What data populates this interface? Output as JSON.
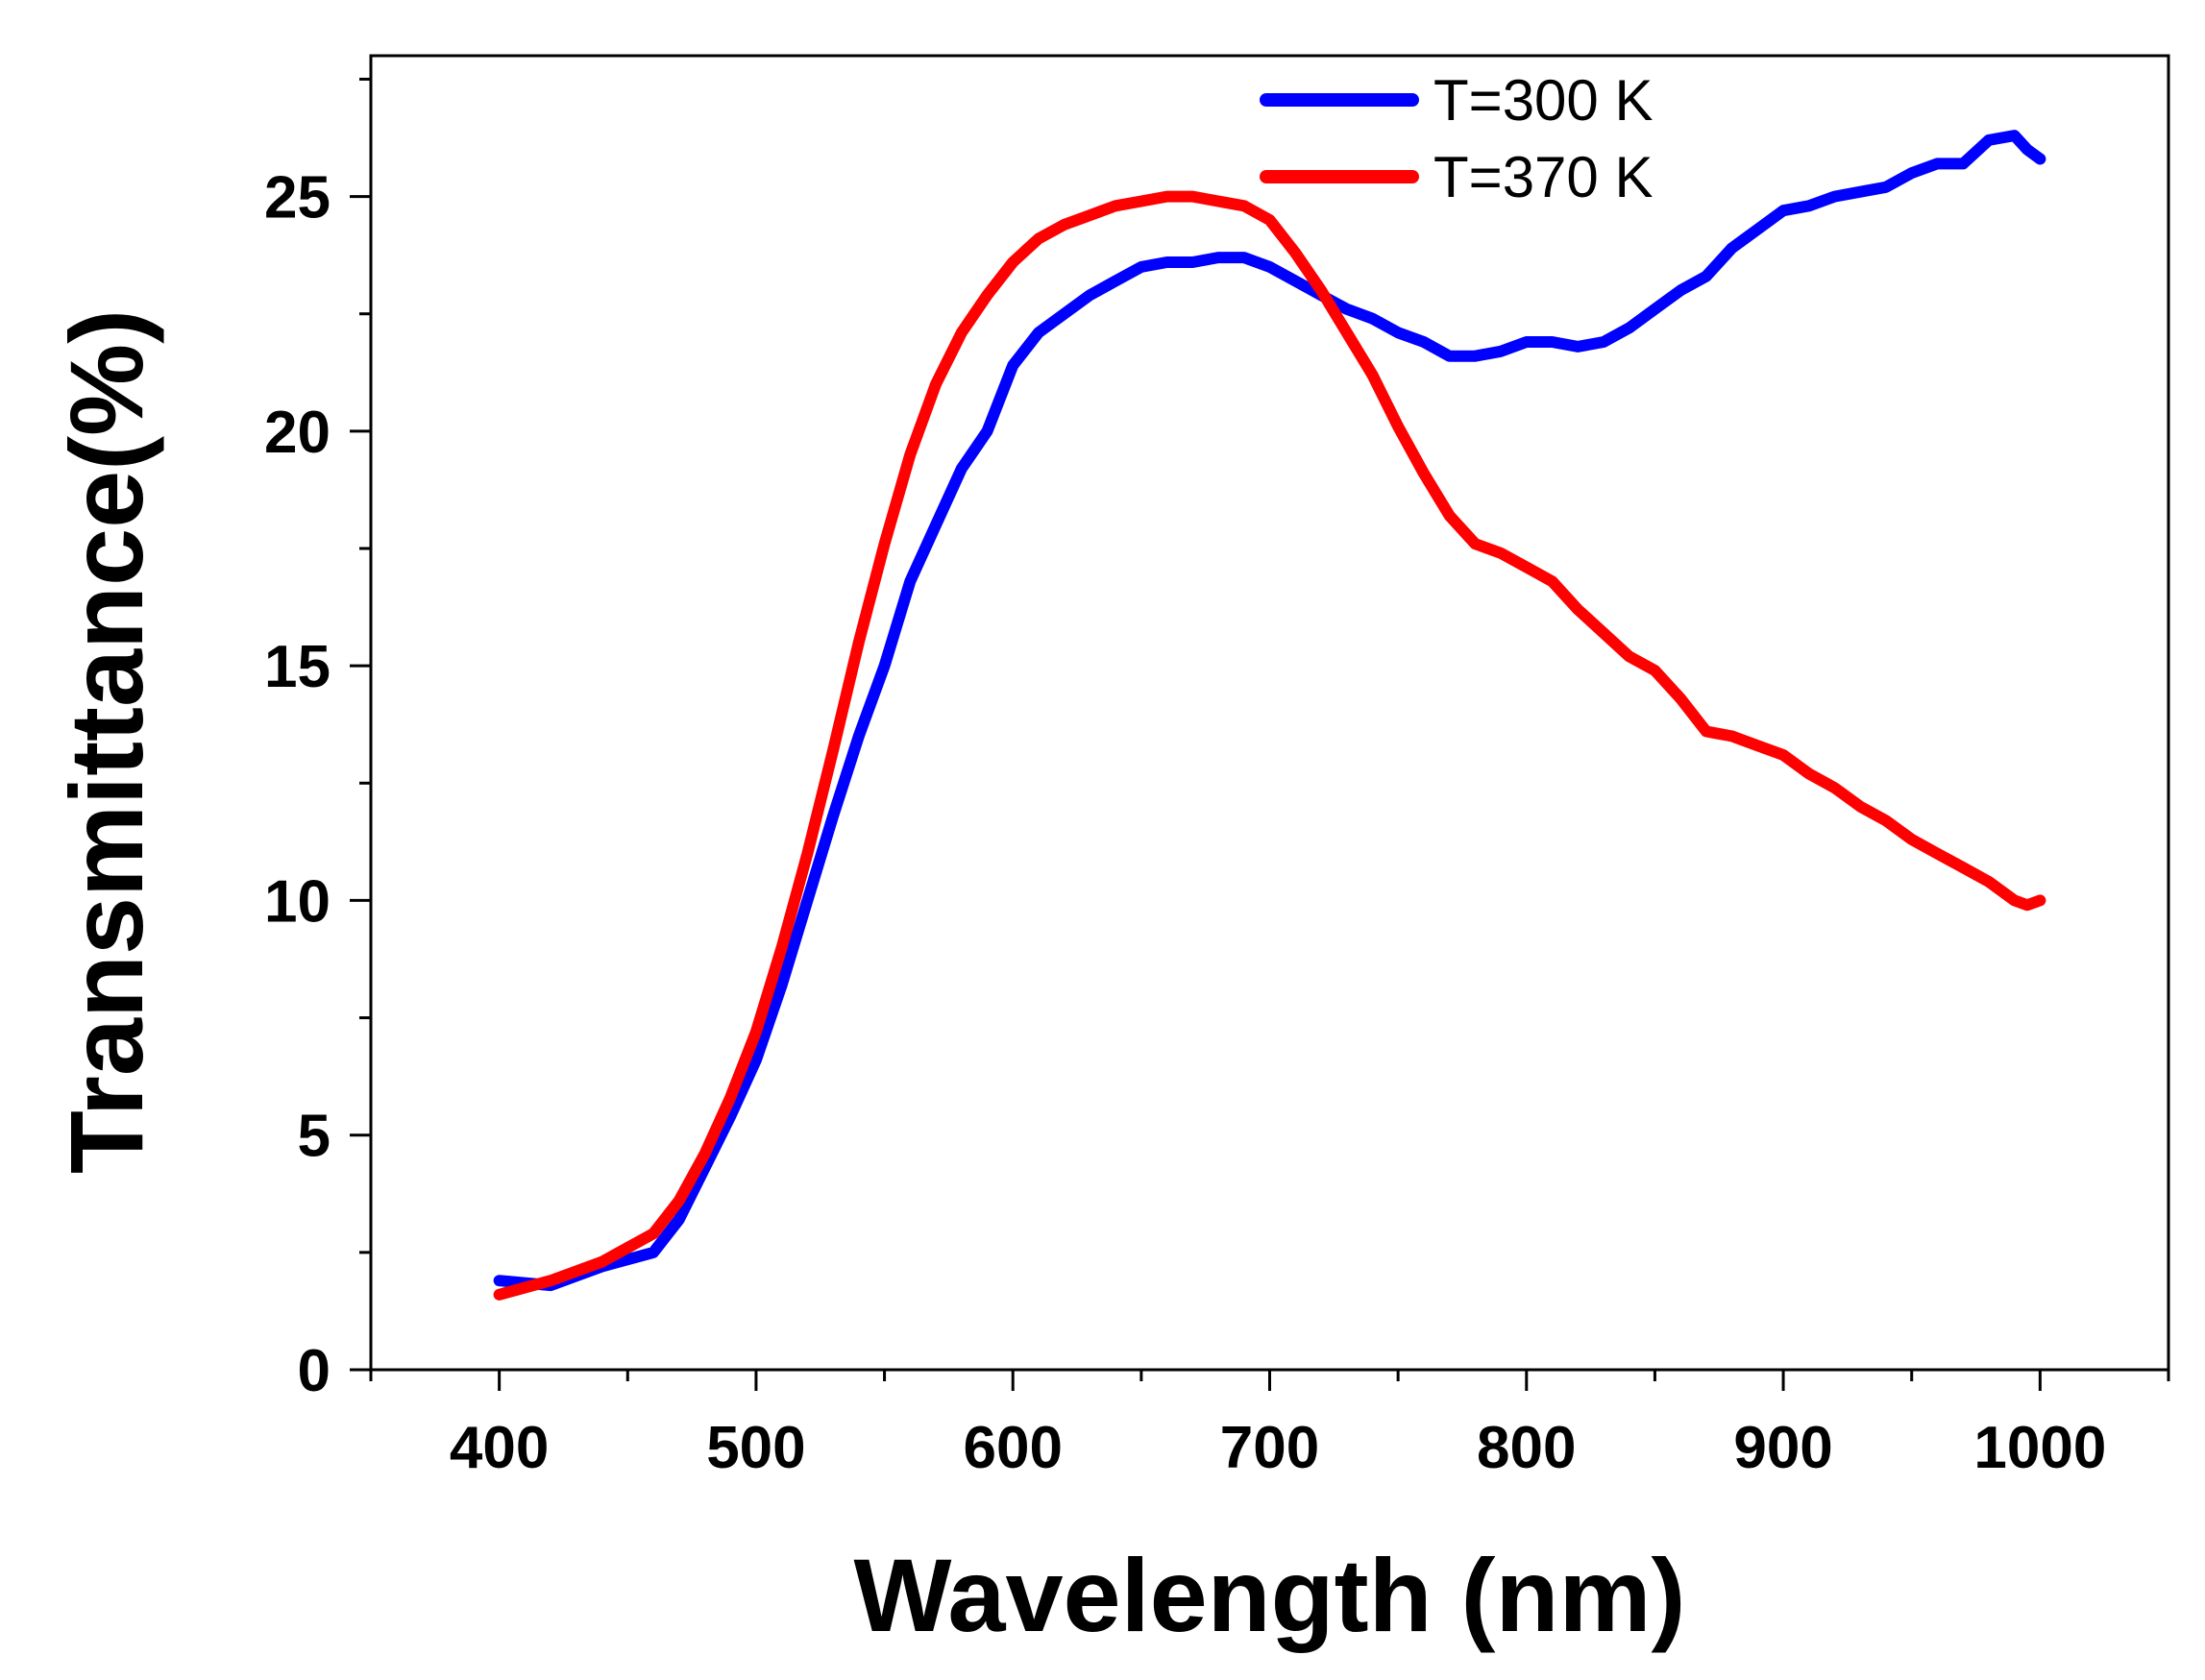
{
  "chart_data": {
    "type": "line",
    "title": "",
    "xlabel": "Wavelength (nm)",
    "ylabel": "Transmittance(%)",
    "xlim": [
      350,
      1050
    ],
    "ylim": [
      0,
      28
    ],
    "xticks": [
      400,
      500,
      600,
      700,
      800,
      900,
      1000
    ],
    "xtick_labels": [
      "400",
      "500",
      "600",
      "700",
      "800",
      "900",
      "1000"
    ],
    "yticks": [
      0,
      5,
      10,
      15,
      20,
      25
    ],
    "ytick_labels": [
      "0",
      "5",
      "10",
      "15",
      "20",
      "25"
    ],
    "grid": false,
    "legend_position": "top-right",
    "series": [
      {
        "name": "T=300 K",
        "color": "#0000ff",
        "x": [
          400,
          420,
          440,
          460,
          470,
          480,
          490,
          500,
          510,
          520,
          530,
          540,
          550,
          560,
          570,
          580,
          590,
          600,
          610,
          620,
          630,
          640,
          650,
          660,
          670,
          680,
          690,
          700,
          710,
          720,
          730,
          740,
          750,
          760,
          770,
          780,
          790,
          800,
          810,
          820,
          830,
          840,
          850,
          860,
          870,
          880,
          890,
          900,
          910,
          920,
          930,
          940,
          950,
          960,
          970,
          980,
          990,
          995,
          1000
        ],
        "values": [
          1.9,
          1.8,
          2.2,
          2.5,
          3.2,
          4.3,
          5.4,
          6.6,
          8.2,
          10.0,
          11.8,
          13.5,
          15.0,
          16.8,
          18.0,
          19.2,
          20.0,
          21.4,
          22.1,
          22.5,
          22.9,
          23.2,
          23.5,
          23.6,
          23.6,
          23.7,
          23.7,
          23.5,
          23.2,
          22.9,
          22.6,
          22.4,
          22.1,
          21.9,
          21.6,
          21.6,
          21.7,
          21.9,
          21.9,
          21.8,
          21.9,
          22.2,
          22.6,
          23.0,
          23.3,
          23.9,
          24.3,
          24.7,
          24.8,
          25.0,
          25.1,
          25.2,
          25.5,
          25.7,
          25.7,
          26.2,
          26.3,
          26.0,
          25.8
        ]
      },
      {
        "name": "T=370 K",
        "color": "#ff0000",
        "x": [
          400,
          420,
          440,
          460,
          470,
          480,
          490,
          500,
          510,
          520,
          530,
          540,
          550,
          560,
          570,
          580,
          590,
          600,
          610,
          620,
          630,
          640,
          650,
          660,
          670,
          680,
          690,
          700,
          710,
          720,
          730,
          740,
          750,
          760,
          770,
          780,
          790,
          800,
          810,
          820,
          830,
          840,
          850,
          860,
          870,
          880,
          890,
          900,
          910,
          920,
          930,
          940,
          950,
          960,
          970,
          980,
          990,
          995,
          1000
        ],
        "values": [
          1.6,
          1.9,
          2.3,
          2.9,
          3.6,
          4.6,
          5.8,
          7.2,
          9.0,
          11.0,
          13.2,
          15.5,
          17.6,
          19.5,
          21.0,
          22.1,
          22.9,
          23.6,
          24.1,
          24.4,
          24.6,
          24.8,
          24.9,
          25.0,
          25.0,
          24.9,
          24.8,
          24.5,
          23.8,
          23.0,
          22.1,
          21.2,
          20.1,
          19.1,
          18.2,
          17.6,
          17.4,
          17.1,
          16.8,
          16.2,
          15.7,
          15.2,
          14.9,
          14.3,
          13.6,
          13.5,
          13.3,
          13.1,
          12.7,
          12.4,
          12.0,
          11.7,
          11.3,
          11.0,
          10.7,
          10.4,
          10.0,
          9.9,
          10.0
        ]
      }
    ]
  }
}
